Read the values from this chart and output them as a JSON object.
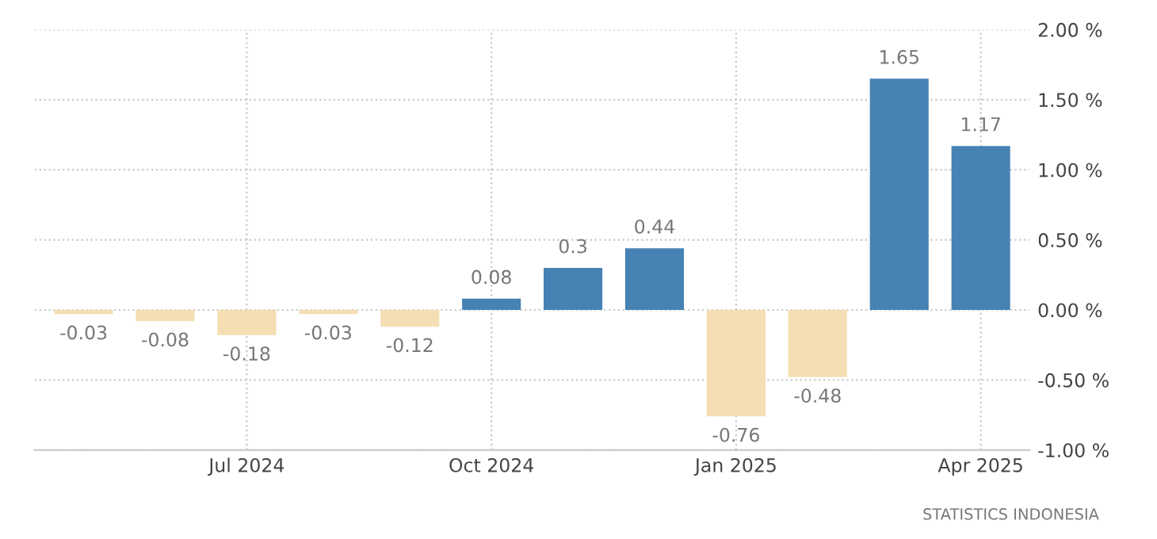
{
  "chart_data": {
    "type": "bar",
    "categories": [
      null,
      null,
      "Jul 2024",
      null,
      null,
      "Oct 2024",
      null,
      null,
      "Jan 2025",
      null,
      null,
      "Apr 2025"
    ],
    "values": [
      -0.03,
      -0.08,
      -0.18,
      -0.03,
      -0.12,
      0.08,
      0.3,
      0.44,
      -0.76,
      -0.48,
      1.65,
      1.17
    ],
    "colors": [
      "#f5deb3",
      "#f5deb3",
      "#f5deb3",
      "#f5deb3",
      "#f5deb3",
      "#4682b4",
      "#4682b4",
      "#4682b4",
      "#f5deb3",
      "#f5deb3",
      "#4682b4",
      "#4682b4"
    ],
    "ylim": [
      -1,
      2
    ],
    "yticks": [
      {
        "value": -1,
        "label": "-1.00 %"
      },
      {
        "value": -0.5,
        "label": "-0.50 %"
      },
      {
        "value": 0,
        "label": "0.00 %"
      },
      {
        "value": 0.5,
        "label": "0.50 %"
      },
      {
        "value": 1,
        "label": "1.00 %"
      },
      {
        "value": 1.5,
        "label": "1.50 %"
      },
      {
        "value": 2,
        "label": "2.00 %"
      }
    ],
    "grid": true,
    "data_labels": true,
    "annotations": [
      "STATISTICS INDONESIA"
    ]
  }
}
